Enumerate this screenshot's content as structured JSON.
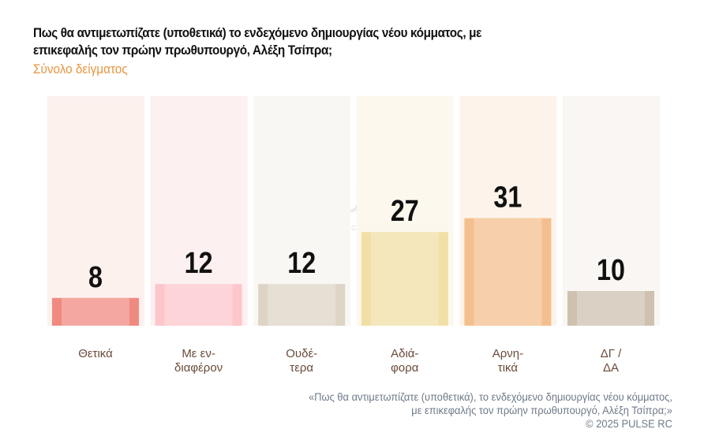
{
  "title": "Πως θα αντιμετωπίζατε (υποθετικά) το ενδεχόμενο δημιουργίας νέου κόμματος, με επικεφαλής τον πρώην πρωθυπουργό, Αλέξη Τσίπρα;",
  "subtitle": "Σύνολο δείγματος",
  "footer": {
    "line1": "«Πως θα αντιμετωπίζατε (υποθετικά), το ενδεχόμενο δημιουργίας νέου κόμματος,",
    "line2": "με επικεφαλής τον πρώην πρωθυπουργό, Αλέξη Τσίπρα;»",
    "line3": "©  2025  PULSE RC"
  },
  "watermark": {
    "main": "PULSE",
    "sub": "RESEARCH & CONSULTING"
  },
  "chart_data": {
    "type": "bar",
    "categories": [
      [
        "Θετικά"
      ],
      [
        "Με εν-",
        "διαφέρον"
      ],
      [
        "Ουδέ-",
        "τερα"
      ],
      [
        "Αδιά-",
        "φορα"
      ],
      [
        "Αρνη-",
        "τικά"
      ],
      [
        "ΔΓ /",
        "ΔΑ"
      ]
    ],
    "values": [
      8,
      12,
      12,
      27,
      31,
      10
    ],
    "colors": [
      "#f08a80",
      "#fcc6cb",
      "#ddd4c6",
      "#f1dfa6",
      "#f4bf8e",
      "#cfc1b0"
    ],
    "background_colors": [
      "#fdf1ee",
      "#fdf0f1",
      "#f9f7f4",
      "#fcf8ee",
      "#fdf3ea",
      "#f9f6f3"
    ],
    "label_color": "#6b4a3a"
  }
}
